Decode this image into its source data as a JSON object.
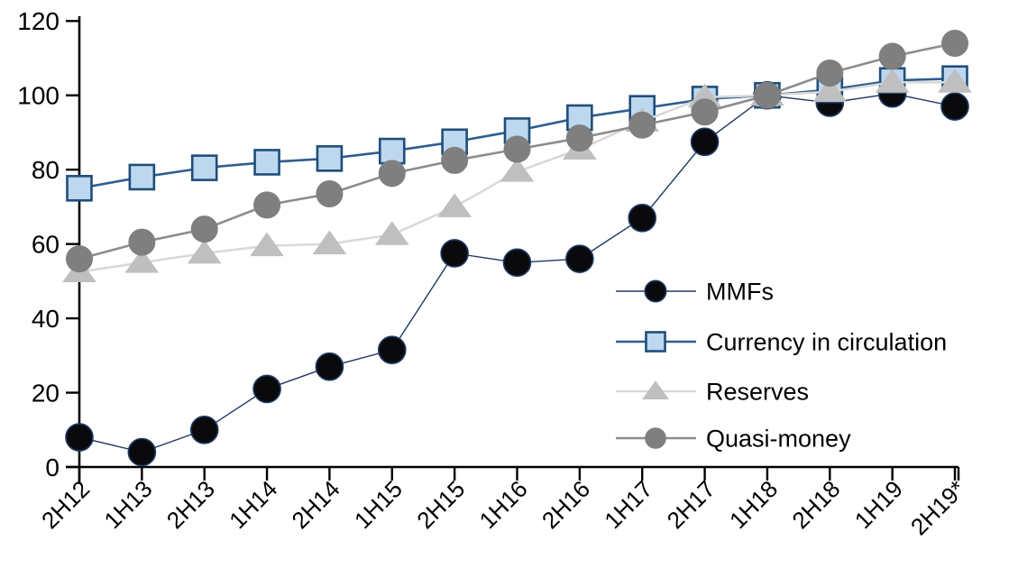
{
  "chart_data": {
    "type": "line",
    "title": "",
    "xlabel": "",
    "ylabel": "",
    "categories": [
      "2H12",
      "1H13",
      "2H13",
      "1H14",
      "2H14",
      "1H15",
      "2H15",
      "1H16",
      "2H16",
      "1H17",
      "2H17",
      "1H18",
      "2H18",
      "1H19",
      "2H19*"
    ],
    "series": [
      {
        "name": "MMFs",
        "marker": "circle",
        "values": [
          8,
          4,
          10,
          21,
          27,
          31.5,
          57.5,
          55,
          56,
          67,
          87.5,
          100,
          98,
          100.5,
          97
        ],
        "line_color": "#1f3864",
        "line_width": 1.4,
        "marker_fill": "#0a0a0c",
        "marker_stroke": "#1f3864",
        "marker_stroke_width": 1.6,
        "marker_size": 15
      },
      {
        "name": "Currency in circulation",
        "marker": "square",
        "values": [
          75,
          78,
          80.5,
          82,
          83,
          85,
          87.5,
          90.5,
          94,
          96.5,
          99,
          100,
          101.5,
          104,
          104.5
        ],
        "line_color": "#2e5e8f",
        "line_width": 2.6,
        "marker_fill": "#bdd7ee",
        "marker_stroke": "#1f4e79",
        "marker_stroke_width": 2.6,
        "marker_size": 13.5
      },
      {
        "name": "Reserves",
        "marker": "triangle",
        "values": [
          52.5,
          55,
          57.5,
          59.5,
          60,
          62.5,
          70,
          79.5,
          85.5,
          93,
          99.5,
          100,
          101,
          103.5,
          103.5
        ],
        "line_color": "#d9d9d9",
        "line_width": 2.6,
        "marker_fill": "#bfbfbf",
        "marker_stroke": "#bfbfbf",
        "marker_stroke_width": 1,
        "marker_size": 14
      },
      {
        "name": "Quasi-money",
        "marker": "circle",
        "values": [
          56,
          60.5,
          64,
          70.5,
          73.5,
          79,
          82.5,
          85.5,
          88.5,
          92,
          95.5,
          100,
          106,
          110.5,
          114
        ],
        "line_color": "#8c8c8c",
        "line_width": 2.6,
        "marker_fill": "#7f7f7f",
        "marker_stroke": "#7f7f7f",
        "marker_stroke_width": 1,
        "marker_size": 14.5
      }
    ],
    "ylim": [
      0,
      120
    ],
    "yticks": [
      0,
      20,
      40,
      60,
      80,
      100,
      120
    ],
    "grid": false,
    "legend_position": "center-right",
    "axis_color": "#000000",
    "background": "#ffffff"
  }
}
